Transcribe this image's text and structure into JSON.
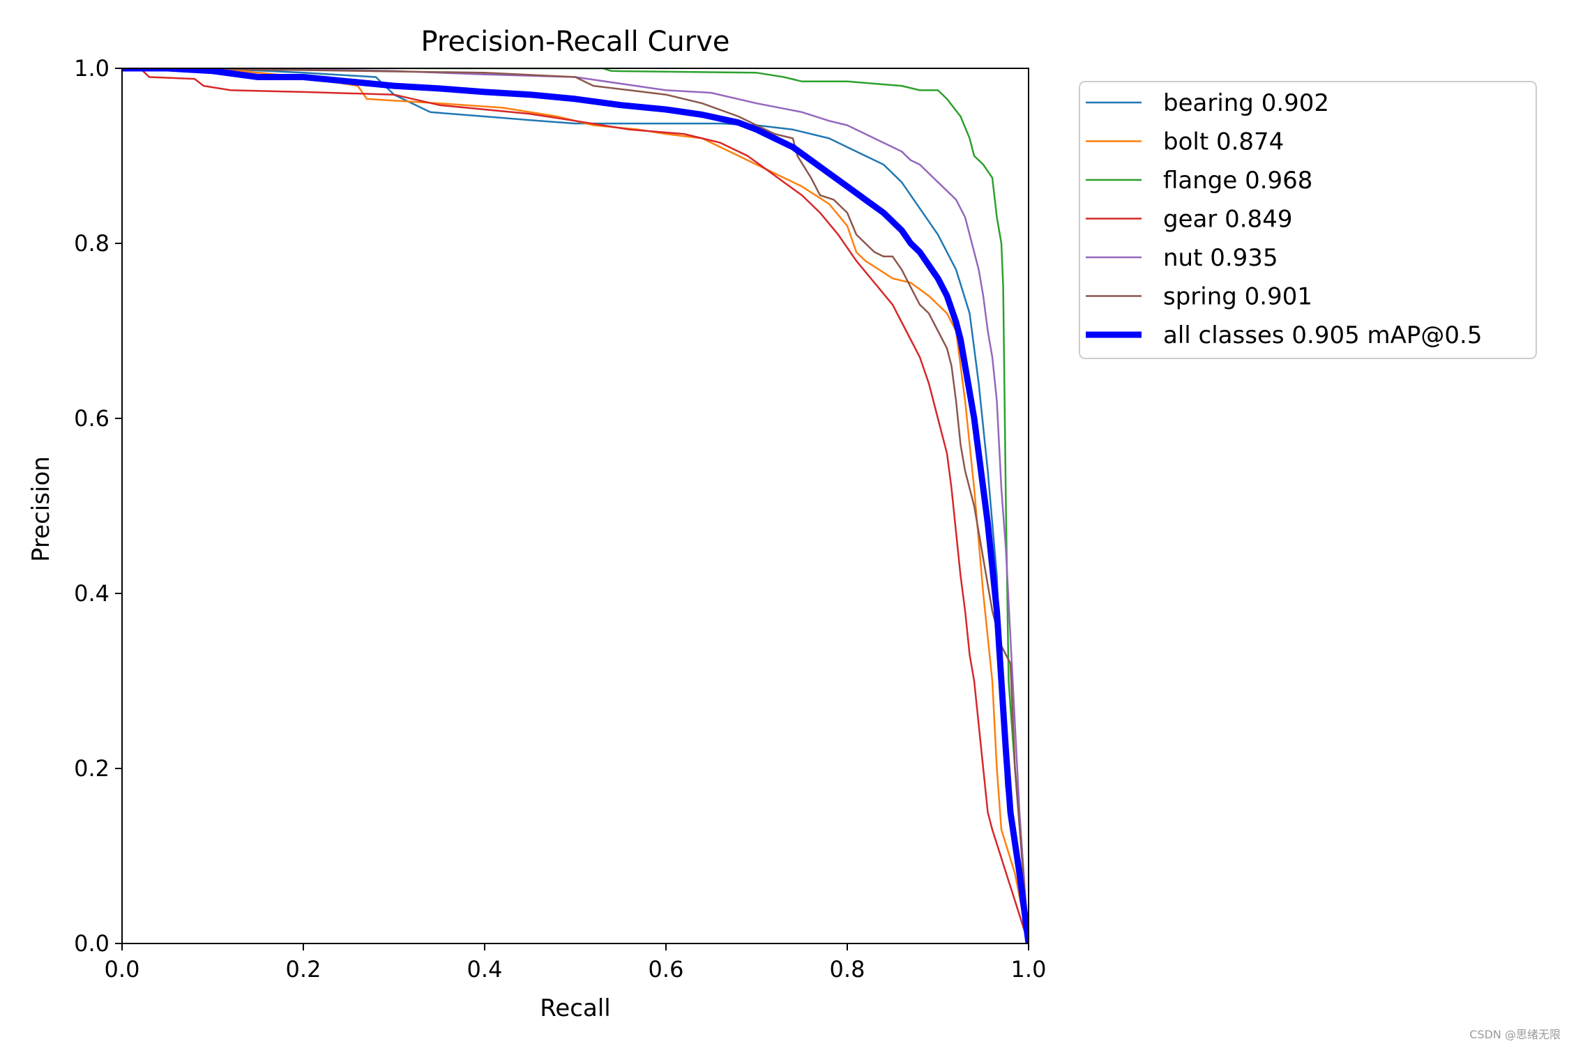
{
  "chart_data": {
    "type": "line",
    "title": "Precision-Recall Curve",
    "xlabel": "Recall",
    "ylabel": "Precision",
    "xlim": [
      0.0,
      1.0
    ],
    "ylim": [
      0.0,
      1.0
    ],
    "xticks": [
      "0.0",
      "0.2",
      "0.4",
      "0.6",
      "0.8",
      "1.0"
    ],
    "yticks": [
      "0.0",
      "0.2",
      "0.4",
      "0.6",
      "0.8",
      "1.0"
    ],
    "grid": false,
    "legend_position": "outside-top-right",
    "series": [
      {
        "name": "bearing 0.902",
        "color": "#1f77b4",
        "points": [
          [
            0,
            1
          ],
          [
            0.1,
            1
          ],
          [
            0.2,
            0.995
          ],
          [
            0.28,
            0.99
          ],
          [
            0.3,
            0.97
          ],
          [
            0.34,
            0.95
          ],
          [
            0.4,
            0.945
          ],
          [
            0.46,
            0.94
          ],
          [
            0.5,
            0.937
          ],
          [
            0.58,
            0.937
          ],
          [
            0.66,
            0.937
          ],
          [
            0.7,
            0.935
          ],
          [
            0.74,
            0.93
          ],
          [
            0.78,
            0.92
          ],
          [
            0.8,
            0.91
          ],
          [
            0.84,
            0.89
          ],
          [
            0.86,
            0.87
          ],
          [
            0.88,
            0.84
          ],
          [
            0.9,
            0.81
          ],
          [
            0.92,
            0.77
          ],
          [
            0.935,
            0.72
          ],
          [
            0.945,
            0.64
          ],
          [
            0.955,
            0.54
          ],
          [
            0.965,
            0.42
          ],
          [
            0.97,
            0.3
          ],
          [
            0.975,
            0.18
          ],
          [
            0.985,
            0.1
          ],
          [
            1.0,
            0
          ]
        ]
      },
      {
        "name": "bolt 0.874",
        "color": "#ff7f0e",
        "points": [
          [
            0,
            1
          ],
          [
            0.1,
            1
          ],
          [
            0.2,
            0.99
          ],
          [
            0.26,
            0.98
          ],
          [
            0.27,
            0.965
          ],
          [
            0.35,
            0.96
          ],
          [
            0.42,
            0.955
          ],
          [
            0.48,
            0.945
          ],
          [
            0.52,
            0.935
          ],
          [
            0.57,
            0.93
          ],
          [
            0.6,
            0.925
          ],
          [
            0.64,
            0.92
          ],
          [
            0.68,
            0.9
          ],
          [
            0.72,
            0.88
          ],
          [
            0.75,
            0.865
          ],
          [
            0.78,
            0.845
          ],
          [
            0.8,
            0.82
          ],
          [
            0.81,
            0.79
          ],
          [
            0.82,
            0.78
          ],
          [
            0.85,
            0.76
          ],
          [
            0.87,
            0.755
          ],
          [
            0.89,
            0.74
          ],
          [
            0.91,
            0.72
          ],
          [
            0.92,
            0.7
          ],
          [
            0.93,
            0.62
          ],
          [
            0.94,
            0.52
          ],
          [
            0.95,
            0.4
          ],
          [
            0.96,
            0.3
          ],
          [
            0.965,
            0.2
          ],
          [
            0.97,
            0.13
          ],
          [
            0.985,
            0.08
          ],
          [
            1.0,
            0
          ]
        ]
      },
      {
        "name": "flange 0.968",
        "color": "#2ca02c",
        "points": [
          [
            0,
            1
          ],
          [
            0.53,
            1
          ],
          [
            0.54,
            0.997
          ],
          [
            0.7,
            0.995
          ],
          [
            0.73,
            0.99
          ],
          [
            0.75,
            0.985
          ],
          [
            0.8,
            0.985
          ],
          [
            0.86,
            0.98
          ],
          [
            0.88,
            0.975
          ],
          [
            0.9,
            0.975
          ],
          [
            0.91,
            0.965
          ],
          [
            0.925,
            0.945
          ],
          [
            0.935,
            0.92
          ],
          [
            0.94,
            0.9
          ],
          [
            0.95,
            0.89
          ],
          [
            0.96,
            0.875
          ],
          [
            0.965,
            0.83
          ],
          [
            0.97,
            0.8
          ],
          [
            0.972,
            0.75
          ],
          [
            0.975,
            0.5
          ],
          [
            0.978,
            0.3
          ],
          [
            0.985,
            0.2
          ],
          [
            0.993,
            0.1
          ],
          [
            1.0,
            0
          ]
        ]
      },
      {
        "name": "gear 0.849",
        "color": "#d62728",
        "points": [
          [
            0,
            1
          ],
          [
            0.02,
            1
          ],
          [
            0.03,
            0.99
          ],
          [
            0.08,
            0.988
          ],
          [
            0.09,
            0.98
          ],
          [
            0.12,
            0.975
          ],
          [
            0.2,
            0.973
          ],
          [
            0.3,
            0.97
          ],
          [
            0.35,
            0.958
          ],
          [
            0.45,
            0.948
          ],
          [
            0.5,
            0.94
          ],
          [
            0.56,
            0.93
          ],
          [
            0.62,
            0.925
          ],
          [
            0.66,
            0.915
          ],
          [
            0.69,
            0.9
          ],
          [
            0.71,
            0.885
          ],
          [
            0.73,
            0.87
          ],
          [
            0.75,
            0.855
          ],
          [
            0.77,
            0.835
          ],
          [
            0.79,
            0.81
          ],
          [
            0.81,
            0.78
          ],
          [
            0.83,
            0.755
          ],
          [
            0.85,
            0.73
          ],
          [
            0.865,
            0.7
          ],
          [
            0.88,
            0.67
          ],
          [
            0.89,
            0.64
          ],
          [
            0.9,
            0.6
          ],
          [
            0.91,
            0.56
          ],
          [
            0.915,
            0.52
          ],
          [
            0.92,
            0.47
          ],
          [
            0.925,
            0.42
          ],
          [
            0.93,
            0.38
          ],
          [
            0.935,
            0.33
          ],
          [
            0.94,
            0.3
          ],
          [
            0.945,
            0.25
          ],
          [
            0.95,
            0.2
          ],
          [
            0.955,
            0.15
          ],
          [
            0.96,
            0.13
          ],
          [
            1.0,
            0
          ]
        ]
      },
      {
        "name": "nut 0.935",
        "color": "#9467bd",
        "points": [
          [
            0,
            1
          ],
          [
            0.15,
            1
          ],
          [
            0.3,
            0.997
          ],
          [
            0.4,
            0.993
          ],
          [
            0.5,
            0.99
          ],
          [
            0.6,
            0.975
          ],
          [
            0.65,
            0.972
          ],
          [
            0.7,
            0.96
          ],
          [
            0.75,
            0.95
          ],
          [
            0.78,
            0.94
          ],
          [
            0.8,
            0.935
          ],
          [
            0.82,
            0.925
          ],
          [
            0.84,
            0.915
          ],
          [
            0.86,
            0.905
          ],
          [
            0.87,
            0.895
          ],
          [
            0.88,
            0.89
          ],
          [
            0.89,
            0.88
          ],
          [
            0.9,
            0.87
          ],
          [
            0.91,
            0.86
          ],
          [
            0.92,
            0.85
          ],
          [
            0.93,
            0.83
          ],
          [
            0.935,
            0.81
          ],
          [
            0.94,
            0.79
          ],
          [
            0.945,
            0.77
          ],
          [
            0.95,
            0.74
          ],
          [
            0.955,
            0.7
          ],
          [
            0.96,
            0.67
          ],
          [
            0.965,
            0.62
          ],
          [
            0.97,
            0.52
          ],
          [
            0.975,
            0.45
          ],
          [
            0.98,
            0.35
          ],
          [
            0.985,
            0.25
          ],
          [
            0.99,
            0.15
          ],
          [
            1.0,
            0
          ]
        ]
      },
      {
        "name": "spring 0.901",
        "color": "#8c564b",
        "points": [
          [
            0,
            1
          ],
          [
            0.2,
            0.998
          ],
          [
            0.4,
            0.995
          ],
          [
            0.5,
            0.99
          ],
          [
            0.52,
            0.98
          ],
          [
            0.56,
            0.975
          ],
          [
            0.6,
            0.97
          ],
          [
            0.64,
            0.96
          ],
          [
            0.68,
            0.945
          ],
          [
            0.7,
            0.935
          ],
          [
            0.72,
            0.925
          ],
          [
            0.74,
            0.92
          ],
          [
            0.745,
            0.9
          ],
          [
            0.76,
            0.875
          ],
          [
            0.77,
            0.855
          ],
          [
            0.785,
            0.85
          ],
          [
            0.8,
            0.835
          ],
          [
            0.81,
            0.81
          ],
          [
            0.82,
            0.8
          ],
          [
            0.83,
            0.79
          ],
          [
            0.84,
            0.785
          ],
          [
            0.85,
            0.785
          ],
          [
            0.86,
            0.77
          ],
          [
            0.87,
            0.75
          ],
          [
            0.88,
            0.73
          ],
          [
            0.89,
            0.72
          ],
          [
            0.9,
            0.7
          ],
          [
            0.91,
            0.68
          ],
          [
            0.915,
            0.66
          ],
          [
            0.92,
            0.62
          ],
          [
            0.925,
            0.57
          ],
          [
            0.93,
            0.54
          ],
          [
            0.94,
            0.5
          ],
          [
            0.95,
            0.44
          ],
          [
            0.96,
            0.38
          ],
          [
            0.97,
            0.34
          ],
          [
            0.975,
            0.33
          ],
          [
            0.98,
            0.32
          ],
          [
            0.985,
            0.2
          ],
          [
            1.0,
            0
          ]
        ]
      },
      {
        "name": "all classes 0.905 mAP@0.5",
        "color": "#0000ff",
        "points": [
          [
            0,
            1
          ],
          [
            0.05,
            1
          ],
          [
            0.1,
            0.997
          ],
          [
            0.15,
            0.99
          ],
          [
            0.2,
            0.99
          ],
          [
            0.25,
            0.985
          ],
          [
            0.3,
            0.98
          ],
          [
            0.35,
            0.977
          ],
          [
            0.4,
            0.973
          ],
          [
            0.45,
            0.97
          ],
          [
            0.5,
            0.965
          ],
          [
            0.55,
            0.958
          ],
          [
            0.6,
            0.953
          ],
          [
            0.64,
            0.947
          ],
          [
            0.68,
            0.938
          ],
          [
            0.7,
            0.93
          ],
          [
            0.72,
            0.92
          ],
          [
            0.74,
            0.91
          ],
          [
            0.76,
            0.895
          ],
          [
            0.78,
            0.88
          ],
          [
            0.8,
            0.865
          ],
          [
            0.82,
            0.85
          ],
          [
            0.84,
            0.835
          ],
          [
            0.86,
            0.815
          ],
          [
            0.87,
            0.8
          ],
          [
            0.88,
            0.79
          ],
          [
            0.89,
            0.775
          ],
          [
            0.9,
            0.76
          ],
          [
            0.91,
            0.74
          ],
          [
            0.92,
            0.71
          ],
          [
            0.925,
            0.69
          ],
          [
            0.93,
            0.66
          ],
          [
            0.935,
            0.63
          ],
          [
            0.94,
            0.6
          ],
          [
            0.945,
            0.56
          ],
          [
            0.95,
            0.52
          ],
          [
            0.955,
            0.48
          ],
          [
            0.96,
            0.43
          ],
          [
            0.965,
            0.38
          ],
          [
            0.97,
            0.3
          ],
          [
            0.975,
            0.22
          ],
          [
            0.98,
            0.15
          ],
          [
            0.99,
            0.08
          ],
          [
            1.0,
            0
          ]
        ]
      }
    ]
  },
  "watermark": "CSDN @思绪无限"
}
